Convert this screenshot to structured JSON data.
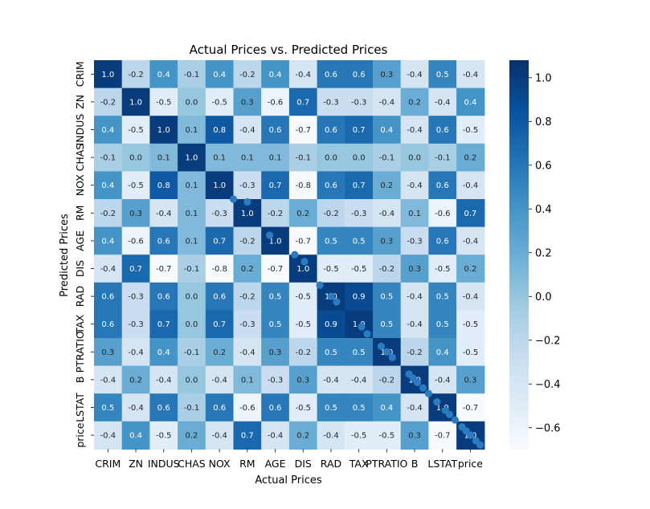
{
  "chart_data": {
    "type": "heatmap",
    "title": "Actual Prices vs. Predicted Prices",
    "xlabel": "Actual Prices",
    "ylabel": "Predicted Prices",
    "labels": [
      "CRIM",
      "ZN",
      "INDUS",
      "CHAS",
      "NOX",
      "RM",
      "AGE",
      "DIS",
      "RAD",
      "TAX",
      "PTRATIO",
      "B",
      "LSTAT",
      "price"
    ],
    "matrix": [
      [
        1.0,
        -0.2,
        0.4,
        -0.1,
        0.4,
        -0.2,
        0.4,
        -0.4,
        0.6,
        0.6,
        0.3,
        -0.4,
        0.5,
        -0.4
      ],
      [
        -0.2,
        1.0,
        -0.5,
        -0.0,
        -0.5,
        0.3,
        -0.6,
        0.7,
        -0.3,
        -0.3,
        -0.4,
        0.2,
        -0.4,
        0.4
      ],
      [
        0.4,
        -0.5,
        1.0,
        0.1,
        0.8,
        -0.4,
        0.6,
        -0.7,
        0.6,
        0.7,
        0.4,
        -0.4,
        0.6,
        -0.5
      ],
      [
        -0.1,
        -0.0,
        0.1,
        1.0,
        0.1,
        0.1,
        0.1,
        -0.1,
        -0.0,
        -0.0,
        -0.1,
        0.0,
        -0.1,
        0.2
      ],
      [
        0.4,
        -0.5,
        0.8,
        0.1,
        1.0,
        -0.3,
        0.7,
        -0.8,
        0.6,
        0.7,
        0.2,
        -0.4,
        0.6,
        -0.4
      ],
      [
        -0.2,
        0.3,
        -0.4,
        0.1,
        -0.3,
        1.0,
        -0.2,
        0.2,
        -0.2,
        -0.3,
        -0.4,
        0.1,
        -0.6,
        0.7
      ],
      [
        0.4,
        -0.6,
        0.6,
        0.1,
        0.7,
        -0.2,
        1.0,
        -0.7,
        0.5,
        0.5,
        0.3,
        -0.3,
        0.6,
        -0.4
      ],
      [
        -0.4,
        0.7,
        -0.7,
        -0.1,
        -0.8,
        0.2,
        -0.7,
        1.0,
        -0.5,
        -0.5,
        -0.2,
        0.3,
        -0.5,
        0.2
      ],
      [
        0.6,
        -0.3,
        0.6,
        -0.0,
        0.6,
        -0.2,
        0.5,
        -0.5,
        1.0,
        0.9,
        0.5,
        -0.4,
        0.5,
        -0.4
      ],
      [
        0.6,
        -0.3,
        0.7,
        -0.0,
        0.7,
        -0.3,
        0.5,
        -0.5,
        0.9,
        1.0,
        0.5,
        -0.4,
        0.5,
        -0.5
      ],
      [
        0.3,
        -0.4,
        0.4,
        -0.1,
        0.2,
        -0.4,
        0.3,
        -0.2,
        0.5,
        0.5,
        1.0,
        -0.2,
        0.4,
        -0.5
      ],
      [
        -0.4,
        0.2,
        -0.4,
        0.0,
        -0.4,
        0.1,
        -0.3,
        0.3,
        -0.4,
        -0.4,
        -0.2,
        1.0,
        -0.4,
        0.3
      ],
      [
        0.5,
        -0.4,
        0.6,
        -0.1,
        0.6,
        -0.6,
        0.6,
        -0.5,
        0.5,
        0.5,
        0.4,
        -0.4,
        1.0,
        -0.7
      ],
      [
        -0.4,
        0.4,
        -0.5,
        0.2,
        -0.4,
        0.7,
        -0.4,
        0.2,
        -0.4,
        -0.5,
        -0.5,
        0.3,
        -0.7,
        1.0
      ]
    ],
    "value_range": [
      -0.7,
      1.08
    ],
    "colorbar": {
      "colormap": "Blues",
      "ticks": [
        -0.6,
        -0.4,
        -0.2,
        0.0,
        0.2,
        0.4,
        0.6,
        0.8,
        1.0
      ],
      "tick_labels": [
        "−0.6",
        "−0.4",
        "−0.2",
        "0.0",
        "0.2",
        "0.4",
        "0.6",
        "0.8",
        "1.0"
      ]
    },
    "scatter_overlay": {
      "color": "#2a7bbf",
      "description_units": "matrix index units (column, row)",
      "points": [
        [
          5.0,
          5.0
        ],
        [
          5.5,
          5.1
        ],
        [
          6.3,
          6.3
        ],
        [
          7.2,
          7.0
        ],
        [
          7.55,
          7.25
        ],
        [
          8.1,
          8.1
        ],
        [
          8.5,
          8.5
        ],
        [
          8.7,
          8.7
        ],
        [
          9.6,
          9.6
        ],
        [
          9.8,
          9.85
        ],
        [
          10.3,
          10.3
        ],
        [
          10.5,
          10.5
        ],
        [
          10.7,
          10.7
        ],
        [
          11.3,
          11.3
        ],
        [
          11.45,
          11.45
        ],
        [
          11.6,
          11.6
        ],
        [
          11.8,
          11.8
        ],
        [
          12.0,
          12.0
        ],
        [
          12.3,
          12.3
        ],
        [
          12.6,
          12.6
        ],
        [
          12.75,
          12.75
        ],
        [
          12.95,
          12.95
        ],
        [
          13.2,
          13.2
        ],
        [
          13.35,
          13.35
        ],
        [
          13.5,
          13.5
        ],
        [
          13.7,
          13.7
        ],
        [
          13.85,
          13.85
        ]
      ]
    }
  }
}
